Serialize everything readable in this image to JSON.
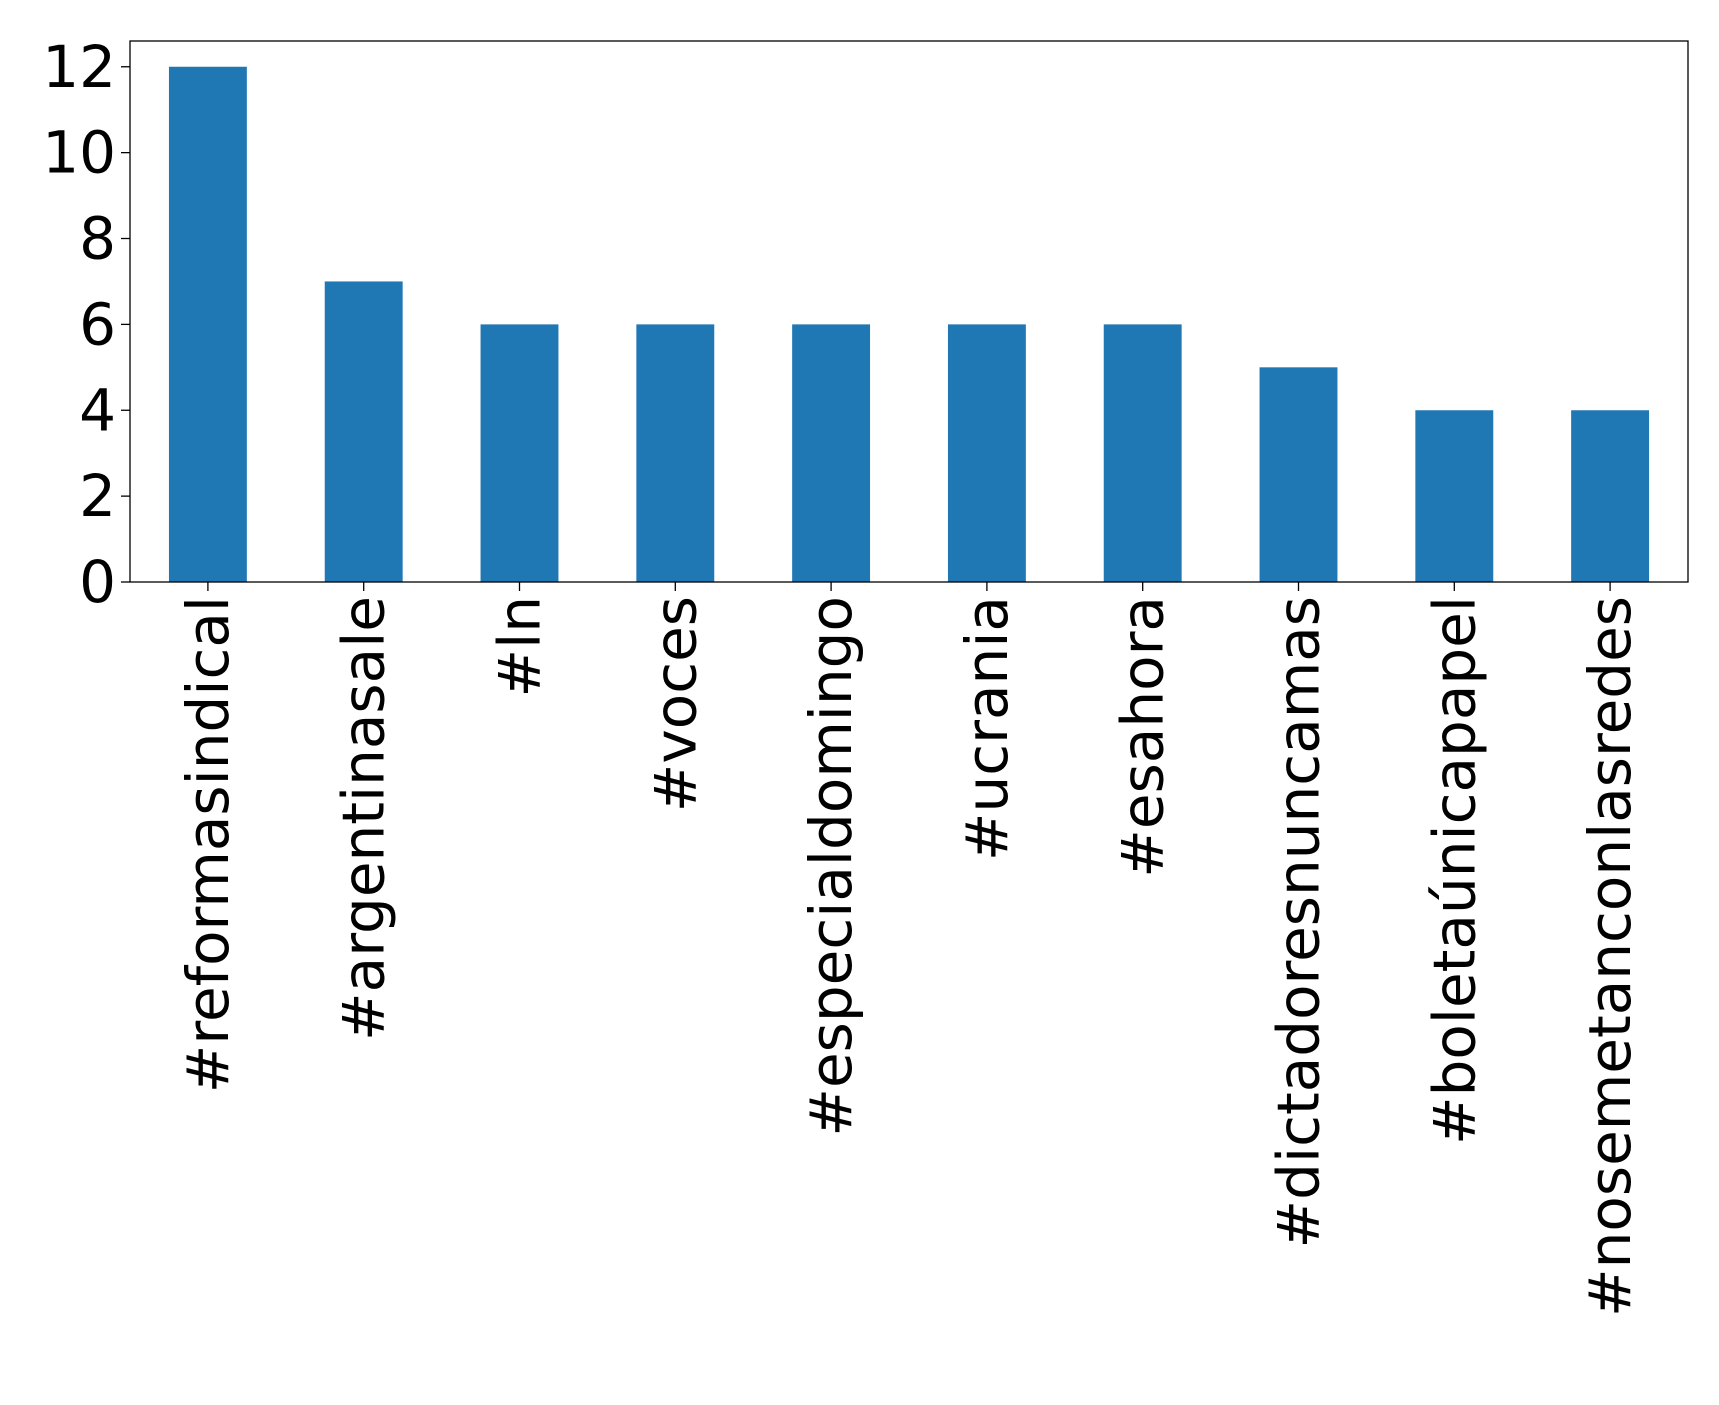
{
  "chart_data": {
    "type": "bar",
    "title": "",
    "xlabel": "",
    "ylabel": "",
    "categories": [
      "#reformasindical",
      "#argentinasale",
      "#ln",
      "#voces",
      "#especialdomingo",
      "#ucrania",
      "#esahora",
      "#dictadoresnuncamas",
      "#boletaúnicapapel",
      "#nosemetanconlasredes"
    ],
    "values": [
      12,
      7,
      6,
      6,
      6,
      6,
      6,
      5,
      4,
      4
    ],
    "ylim": [
      0,
      12.6
    ],
    "yticks": [
      0,
      2,
      4,
      6,
      8,
      10,
      12
    ],
    "grid": false,
    "legend": "none",
    "bar_color": "#1f77b4",
    "axis_color": "#000000"
  }
}
